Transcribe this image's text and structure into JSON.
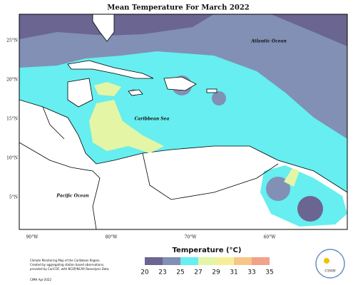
{
  "title": "Mean Temperature For March 2022",
  "labels": {
    "atlantic": "Atlantic Ocean",
    "caribbean": "Caribbean Sea",
    "pacific": "Pacific Ocean"
  },
  "lat_ticks": [
    "25°N",
    "20°N",
    "15°N",
    "10°N",
    "5°N"
  ],
  "lon_ticks": [
    "90°W",
    "80°W",
    "70°W",
    "60°W"
  ],
  "legend": {
    "title": "Temperature (°C)",
    "breaks": [
      20,
      23,
      25,
      27,
      29,
      31,
      33,
      35
    ],
    "colors": [
      "#6b6592",
      "#8190b4",
      "#66eef0",
      "#e4f5a6",
      "#f6ef9a",
      "#f7c689",
      "#f3a28a"
    ]
  },
  "credits": [
    "Climate Monitoring Map of the Caribbean Region.",
    "Created by aggregating station based observations,",
    "provided by CariCOF, with NCEP/NCAR Reanalysis Data."
  ],
  "stamp": "CIMH Apr-2022",
  "logo": "CIMH"
}
